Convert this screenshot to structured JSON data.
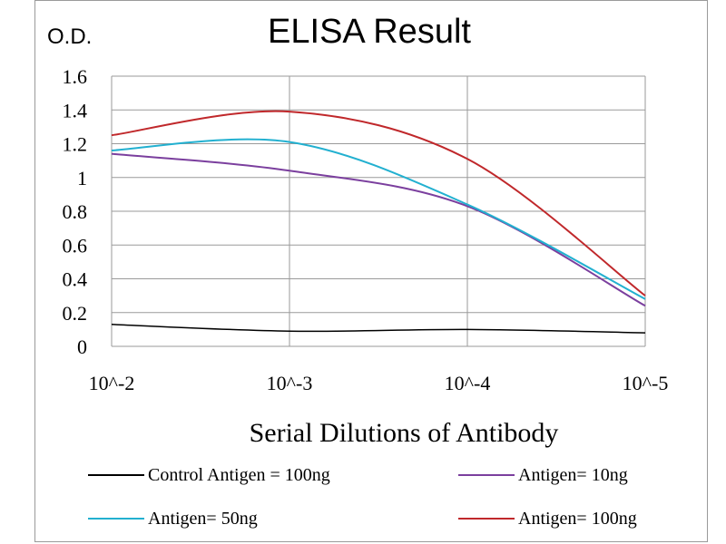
{
  "chart_data": {
    "type": "line",
    "title": "ELISA Result",
    "ylabel": "O.D.",
    "xlabel": "Serial Dilutions  of Antibody",
    "x": [
      "10^-2",
      "10^-3",
      "10^-4",
      "10^-5"
    ],
    "ylim": [
      0,
      1.6
    ],
    "yticks": [
      "0",
      "0.2",
      "0.4",
      "0.6",
      "0.8",
      "1",
      "1.2",
      "1.4",
      "1.6"
    ],
    "grid": true,
    "legend_position": "bottom",
    "series": [
      {
        "name": "Control Antigen = 100ng",
        "color": "#000000",
        "values": [
          0.13,
          0.09,
          0.1,
          0.08
        ]
      },
      {
        "name": "Antigen= 10ng",
        "color": "#7b3f9e",
        "values": [
          1.14,
          1.04,
          0.83,
          0.24
        ]
      },
      {
        "name": "Antigen= 50ng",
        "color": "#22b0d0",
        "values": [
          1.16,
          1.21,
          0.84,
          0.28
        ]
      },
      {
        "name": "Antigen= 100ng",
        "color": "#c0282b",
        "values": [
          1.25,
          1.39,
          1.11,
          0.3
        ]
      }
    ]
  }
}
